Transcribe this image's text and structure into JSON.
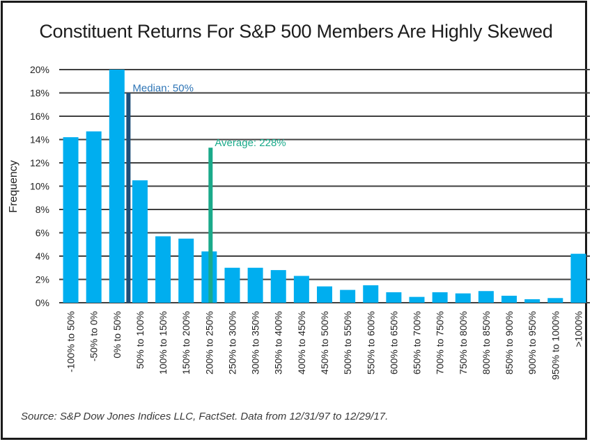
{
  "title": "Constituent Returns For S&P 500 Members Are Highly Skewed",
  "source": "Source: S&P Dow Jones Indices LLC, FactSet. Data from 12/31/97 to 12/29/17.",
  "colors": {
    "bar": "#00aeef",
    "median": "#1f4e79",
    "average": "#1aaa8a",
    "median_text": "#2e75b6",
    "average_text": "#1aaa8a",
    "grid": "#3f3f3f"
  },
  "chart_data": {
    "type": "bar",
    "title": "Constituent Returns For S&P 500 Members Are Highly Skewed",
    "xlabel": "",
    "ylabel": "Frequency",
    "ylim": [
      0,
      20
    ],
    "yticks": [
      "0%",
      "2%",
      "4%",
      "6%",
      "8%",
      "10%",
      "12%",
      "14%",
      "16%",
      "18%",
      "20%"
    ],
    "grid": true,
    "categories": [
      "-100% to 50%",
      "-50% to 0%",
      "0% to 50%",
      "50% to 100%",
      "100% to 150%",
      "150% to 200%",
      "200% to 250%",
      "250% to 300%",
      "300% to 350%",
      "350% to 400%",
      "400% to 450%",
      "450% to 500%",
      "500% to 550%",
      "550% to 600%",
      "600% to 650%",
      "650% to 700%",
      "700% to 750%",
      "750% to 800%",
      "800% to 850%",
      "850% to 900%",
      "900% to 950%",
      "950% to 1000%",
      ">1000%"
    ],
    "values": [
      14.2,
      14.7,
      20.0,
      10.5,
      5.7,
      5.5,
      4.4,
      3.0,
      3.0,
      2.8,
      2.3,
      1.4,
      1.1,
      1.5,
      0.9,
      0.5,
      0.9,
      0.8,
      1.0,
      0.6,
      0.3,
      0.4,
      4.2
    ],
    "annotations": [
      {
        "label": "Median: 50%",
        "x": 50,
        "value": 18
      },
      {
        "label": "Average: 228%",
        "x": 228,
        "value": 13.3
      }
    ]
  }
}
